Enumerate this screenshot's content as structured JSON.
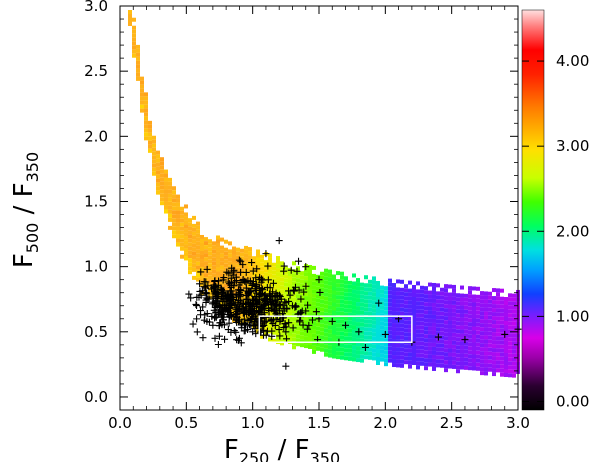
{
  "chart_data": {
    "type": "scatter",
    "title": "",
    "xlabel": {
      "main": "F",
      "sub1": "250",
      "sep": " / F",
      "sub2": "350"
    },
    "ylabel": {
      "main": "F",
      "sub1": "500",
      "sep": " / F",
      "sub2": "350"
    },
    "xlim": [
      0.0,
      3.0
    ],
    "ylim": [
      -0.1,
      3.0
    ],
    "x_ticks": [
      "0.0",
      "0.5",
      "1.0",
      "1.5",
      "2.0",
      "2.5",
      "3.0"
    ],
    "x_tick_values": [
      0.0,
      0.5,
      1.0,
      1.5,
      2.0,
      2.5,
      3.0
    ],
    "y_ticks": [
      "0.0",
      "0.5",
      "1.0",
      "1.5",
      "2.0",
      "2.5",
      "3.0"
    ],
    "y_tick_values": [
      0.0,
      0.5,
      1.0,
      1.5,
      2.0,
      2.5,
      3.0
    ],
    "colorbar": {
      "range": [
        -0.1,
        4.6
      ],
      "tick_labels": [
        "0.00",
        "1.00",
        "2.00",
        "3.00",
        "4.00"
      ],
      "tick_values": [
        0.0,
        1.0,
        2.0,
        3.0,
        4.0
      ],
      "colormap": "rainbow (black-purple-blue-cyan-green-yellow-orange-red-white)"
    },
    "density_background": {
      "description": "color-coded density map of model colour tracks, higher colorbar value at low F250/F350 and high F500/F350",
      "ridge": [
        {
          "x": 0.05,
          "y": 3.0
        },
        {
          "x": 0.12,
          "y": 2.5
        },
        {
          "x": 0.2,
          "y": 2.0
        },
        {
          "x": 0.3,
          "y": 1.6
        },
        {
          "x": 0.45,
          "y": 1.25
        },
        {
          "x": 0.6,
          "y": 1.0
        },
        {
          "x": 0.8,
          "y": 0.85
        },
        {
          "x": 1.0,
          "y": 0.75
        },
        {
          "x": 1.3,
          "y": 0.65
        },
        {
          "x": 1.6,
          "y": 0.58
        },
        {
          "x": 2.0,
          "y": 0.52
        },
        {
          "x": 2.5,
          "y": 0.47
        },
        {
          "x": 3.0,
          "y": 0.43
        }
      ]
    },
    "series": [
      {
        "marker": "+",
        "color": "#000000",
        "cluster_center": [
          0.95,
          0.7
        ],
        "cluster_spread": [
          0.22,
          0.12
        ],
        "points": [
          [
            0.85,
            0.72
          ],
          [
            0.9,
            0.68
          ],
          [
            0.95,
            0.75
          ],
          [
            1.0,
            0.7
          ],
          [
            1.05,
            0.66
          ],
          [
            0.8,
            0.78
          ],
          [
            0.88,
            0.62
          ],
          [
            0.97,
            0.8
          ],
          [
            1.1,
            0.72
          ],
          [
            0.75,
            0.7
          ],
          [
            1.2,
            0.68
          ],
          [
            1.3,
            0.7
          ],
          [
            1.4,
            0.66
          ],
          [
            1.5,
            0.6
          ],
          [
            1.6,
            0.58
          ],
          [
            1.7,
            0.55
          ],
          [
            1.8,
            0.5
          ],
          [
            2.0,
            0.48
          ],
          [
            2.2,
            0.42
          ],
          [
            2.4,
            0.46
          ],
          [
            2.6,
            0.44
          ],
          [
            2.9,
            0.48
          ],
          [
            3.0,
            0.52
          ],
          [
            1.1,
            1.1
          ],
          [
            1.2,
            1.2
          ],
          [
            0.9,
            1.05
          ],
          [
            1.4,
            1.0
          ],
          [
            1.5,
            0.9
          ],
          [
            0.65,
            0.8
          ],
          [
            0.7,
            0.55
          ],
          [
            0.9,
            0.45
          ],
          [
            1.0,
            0.5
          ],
          [
            1.25,
            0.5
          ],
          [
            1.65,
            0.42
          ],
          [
            1.85,
            0.38
          ],
          [
            2.1,
            0.6
          ],
          [
            1.95,
            0.72
          ],
          [
            1.35,
            0.82
          ],
          [
            0.82,
            0.95
          ],
          [
            1.05,
            0.9
          ]
        ]
      }
    ],
    "annotation_box": {
      "x0": 1.05,
      "x1": 2.2,
      "y0": 0.42,
      "y1": 0.62,
      "color": "#ffffff"
    }
  }
}
